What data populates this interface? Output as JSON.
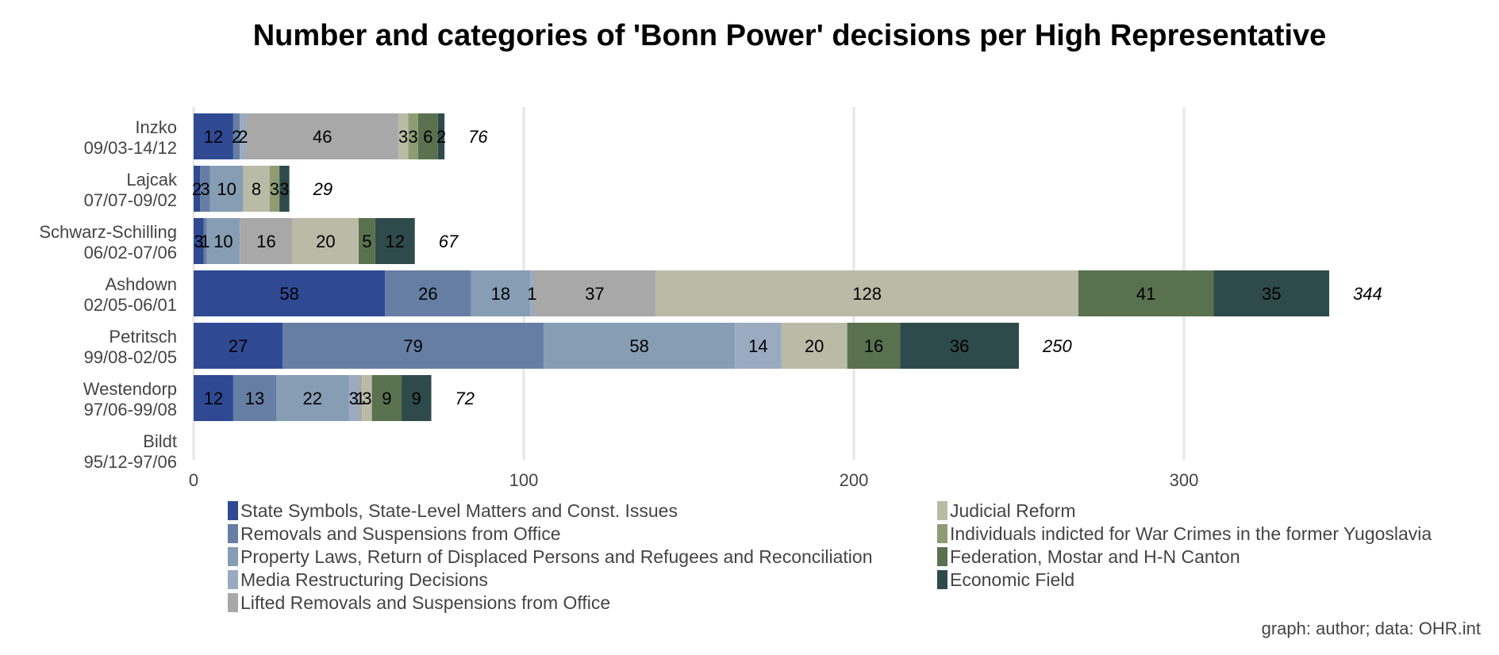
{
  "chart_data": {
    "type": "bar",
    "orientation": "horizontal",
    "stacked": true,
    "title": "Number and categories of 'Bonn Power' decisions per High Representative",
    "caption": "graph: author; data: OHR.int",
    "categories": [
      [
        "Inzko",
        "09/03-14/12"
      ],
      [
        "Lajcak",
        "07/07-09/02"
      ],
      [
        "Schwarz-Schilling",
        "06/02-07/06"
      ],
      [
        "Ashdown",
        "02/05-06/01"
      ],
      [
        "Petritsch",
        "99/08-02/05"
      ],
      [
        "Westendorp",
        "97/06-99/08"
      ],
      [
        "Bildt",
        "95/12-97/06"
      ]
    ],
    "totals": [
      "76",
      "29",
      "67",
      "344",
      "250",
      "72",
      ""
    ],
    "xlim": [
      0,
      350
    ],
    "xticks": [
      0,
      100,
      200,
      300
    ],
    "grid": true,
    "legend_position": "bottom",
    "series": [
      {
        "name": "State Symbols, State-Level Matters and Const. Issues",
        "color": "#2f4a93",
        "values": [
          12,
          2,
          3,
          58,
          27,
          12,
          0
        ]
      },
      {
        "name": "Removals and Suspensions from Office",
        "color": "#667ea3",
        "values": [
          2,
          3,
          1,
          26,
          79,
          13,
          0
        ]
      },
      {
        "name": "Property Laws, Return of Displaced Persons and Refugees and Reconciliation",
        "color": "#869db4",
        "values": [
          0,
          10,
          10,
          18,
          58,
          22,
          0
        ]
      },
      {
        "name": "Media Restructuring Decisions",
        "color": "#9aaac0",
        "values": [
          2,
          0,
          0,
          1,
          14,
          3,
          0
        ]
      },
      {
        "name": "Lifted Removals and Suspensions from Office",
        "color": "#a8a8a8",
        "values": [
          46,
          0,
          16,
          37,
          0,
          1,
          0
        ]
      },
      {
        "name": "Judicial Reform",
        "color": "#b9bba7",
        "values": [
          3,
          8,
          20,
          128,
          20,
          3,
          0
        ]
      },
      {
        "name": "Individuals indicted for War Crimes in the former Yugoslavia",
        "color": "#8e9c73",
        "values": [
          3,
          3,
          0,
          0,
          0,
          0,
          0
        ]
      },
      {
        "name": "Federation, Mostar and H-N Canton",
        "color": "#5a714f",
        "values": [
          6,
          0,
          5,
          41,
          16,
          9,
          0
        ]
      },
      {
        "name": "Economic Field",
        "color": "#2f4a4a",
        "values": [
          2,
          3,
          12,
          35,
          36,
          9,
          0
        ]
      }
    ]
  }
}
